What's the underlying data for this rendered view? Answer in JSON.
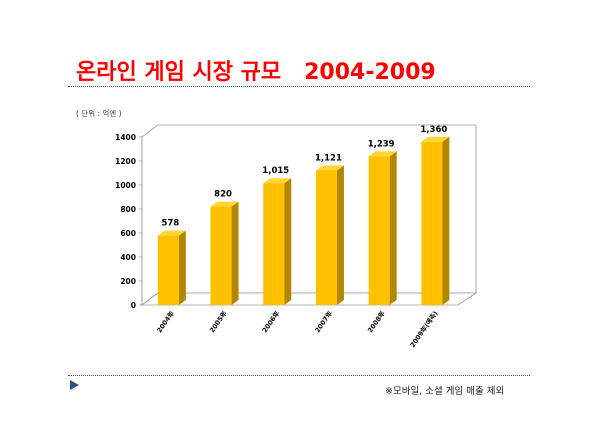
{
  "slide": {
    "title": "온라인 게임 시장 규모   2004-2009",
    "footnote": "※모바일, 소셜 게임 매출 제외",
    "accent": "#ff0000",
    "rule_color": "#2f4f7f"
  },
  "nav": {
    "icon": "play-triangle-icon"
  },
  "chart_data": {
    "type": "bar",
    "title": "",
    "unit_label": "( 단위 : 억엔 )",
    "categories": [
      "2004年",
      "2005年",
      "2006年",
      "2007年",
      "2008年",
      "2009年(예측)"
    ],
    "series": [
      {
        "values": [
          578,
          820,
          1015,
          1121,
          1239,
          1360
        ]
      }
    ],
    "data_labels": [
      "578",
      "820",
      "1,015",
      "1,121",
      "1,239",
      "1,360"
    ],
    "yticks": [
      "0",
      "200",
      "400",
      "600",
      "800",
      "1000",
      "1200",
      "1400"
    ],
    "ylim": [
      0,
      1400
    ],
    "grid": false,
    "bar_front_color": "#ffc000",
    "bar_top_color": "#ffd633",
    "bar_side_color": "#b38600"
  }
}
